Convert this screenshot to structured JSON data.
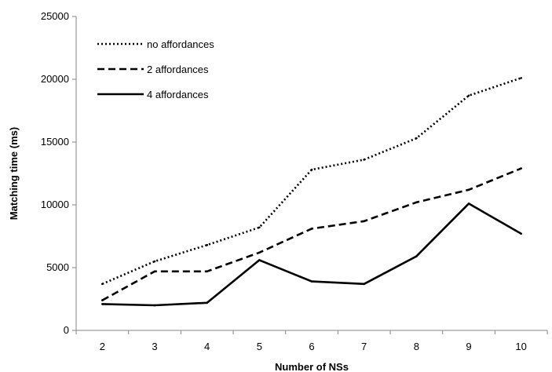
{
  "chart_data": {
    "type": "line",
    "title": "",
    "xlabel": "Number of NSs",
    "ylabel": "Matching time (ms)",
    "x": [
      2,
      3,
      4,
      5,
      6,
      7,
      8,
      9,
      10
    ],
    "ylim": [
      0,
      25000
    ],
    "yticks": [
      0,
      5000,
      10000,
      15000,
      20000,
      25000
    ],
    "grid": false,
    "legend_position": "top-left",
    "series": [
      {
        "name": "no affordances",
        "dash": "dotted",
        "color": "#000000",
        "values": [
          3700,
          5500,
          6800,
          8200,
          12800,
          13600,
          15300,
          18700,
          20100
        ]
      },
      {
        "name": "2 affordances",
        "dash": "dashed",
        "color": "#000000",
        "values": [
          2400,
          4700,
          4700,
          6200,
          8100,
          8700,
          10200,
          11200,
          12900
        ]
      },
      {
        "name": "4 affordances",
        "dash": "solid",
        "color": "#000000",
        "values": [
          2100,
          2000,
          2200,
          5600,
          3900,
          3700,
          5900,
          10100,
          7700
        ]
      }
    ]
  }
}
